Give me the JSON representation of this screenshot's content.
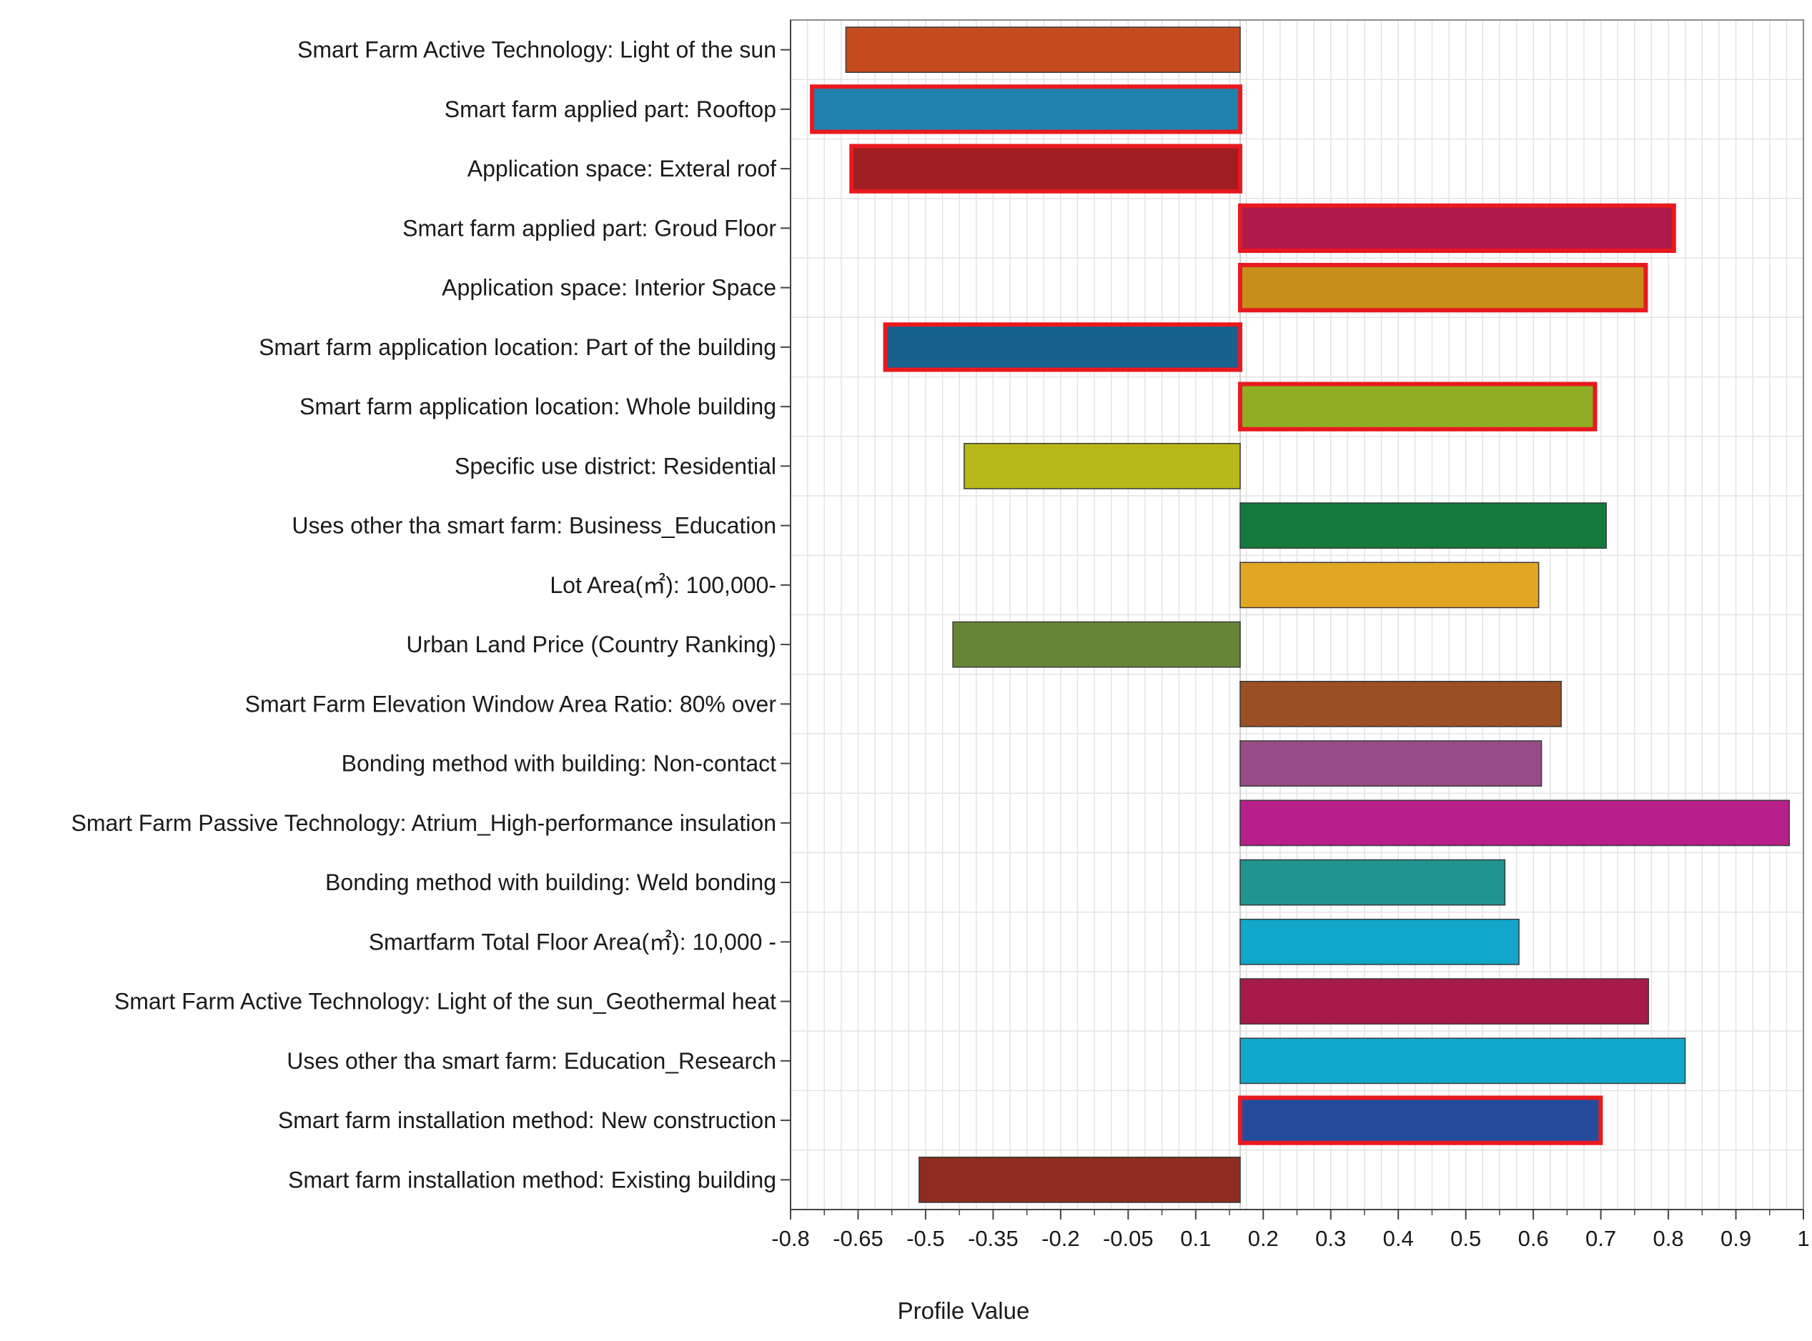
{
  "chart_data": {
    "type": "bar",
    "orientation": "horizontal",
    "title": "",
    "xlabel": "Profile Value",
    "ylabel": "",
    "xlim": [
      -0.8,
      1.0
    ],
    "grid": true,
    "xticks": [
      "-0.8",
      "-0.65",
      "-0.5",
      "-0.35",
      "-0.2",
      "-0.05",
      "0.1",
      "0.2",
      "0.3",
      "0.4",
      "0.5",
      "0.6",
      "0.7",
      "0.8",
      "0.9",
      "1"
    ],
    "categories": [
      "Smart Farm Active Technology: Light of the sun",
      "Smart farm applied part: Rooftop",
      "Application space: Exteral roof",
      "Smart farm applied part: Groud Floor",
      "Application space: Interior Space",
      "Smart farm application location: Part of the building",
      "Smart farm application location: Whole building",
      "Specific use district: Residential",
      "Uses other tha smart farm: Business_Education",
      "Lot Area(㎡): 100,000-",
      "Urban Land Price (Country Ranking)",
      "Smart Farm Elevation Window Area Ratio: 80% over",
      "Bonding method with building: Non-contact",
      "Smart Farm Passive Technology: Atrium_High-performance insulation",
      "Bonding method with building: Weld bonding",
      "Smartfarm Total Floor Area(㎡): 10,000 -",
      "Smart Farm Active Technology: Light of the sun_Geothermal heat",
      "Uses other tha smart farm: Education_Research",
      "Smart farm installation method: New construction",
      "Smart farm installation method: Existing building"
    ],
    "values": [
      -0.7,
      -0.76,
      -0.69,
      0.77,
      0.72,
      -0.63,
      0.63,
      -0.49,
      0.65,
      0.53,
      -0.51,
      0.57,
      0.535,
      0.975,
      0.47,
      0.495,
      0.725,
      0.79,
      0.64,
      -0.57
    ],
    "highlighted": [
      false,
      true,
      true,
      true,
      true,
      true,
      true,
      false,
      false,
      false,
      false,
      false,
      false,
      false,
      false,
      false,
      false,
      false,
      true,
      false
    ],
    "bar_colors": [
      "#c54b1e",
      "#1e82ad",
      "#9e1e22",
      "#ae1a4c",
      "#c68f1a",
      "#16618e",
      "#8fae23",
      "#b8b81a",
      "#127b3c",
      "#e2a722",
      "#668635",
      "#9a5022",
      "#974c87",
      "#b71f8a",
      "#229490",
      "#11a7ca",
      "#a81a4a",
      "#12a8cc",
      "#254b9c",
      "#8e2c22"
    ],
    "highlight_color": "#e8191f",
    "grid_color": "#e3e3e3"
  }
}
